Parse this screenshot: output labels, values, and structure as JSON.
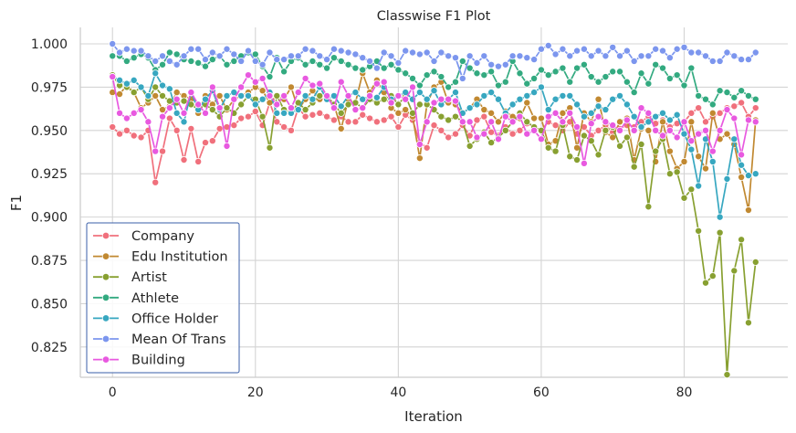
{
  "chart_data": {
    "type": "line",
    "title": "Classwise F1 Plot",
    "xlabel": "Iteration",
    "ylabel": "F1",
    "xlim": [
      -4.5,
      94.5
    ],
    "ylim": [
      0.8075,
      1.0095
    ],
    "xticks": [
      0,
      20,
      40,
      60,
      80
    ],
    "xtick_labels": [
      "0",
      "20",
      "40",
      "60",
      "80"
    ],
    "yticks": [
      0.825,
      0.85,
      0.875,
      0.9,
      0.925,
      0.95,
      0.975,
      1.0
    ],
    "ytick_labels": [
      "0.825",
      "0.850",
      "0.875",
      "0.900",
      "0.925",
      "0.950",
      "0.975",
      "1.000"
    ],
    "grid": true,
    "legend_position": "lower-left",
    "x": [
      0,
      1,
      2,
      3,
      4,
      5,
      6,
      7,
      8,
      9,
      10,
      11,
      12,
      13,
      14,
      15,
      16,
      17,
      18,
      19,
      20,
      21,
      22,
      23,
      24,
      25,
      26,
      27,
      28,
      29,
      30,
      31,
      32,
      33,
      34,
      35,
      36,
      37,
      38,
      39,
      40,
      41,
      42,
      43,
      44,
      45,
      46,
      47,
      48,
      49,
      50,
      51,
      52,
      53,
      54,
      55,
      56,
      57,
      58,
      59,
      60,
      61,
      62,
      63,
      64,
      65,
      66,
      67,
      68,
      69,
      70,
      71,
      72,
      73,
      74,
      75,
      76,
      77,
      78,
      79,
      80,
      81,
      82,
      83,
      84,
      85,
      86,
      87,
      88,
      89,
      90
    ],
    "series": [
      {
        "name": "Company",
        "color": "#f0707c",
        "values": [
          0.952,
          0.948,
          0.95,
          0.947,
          0.946,
          0.95,
          0.92,
          0.938,
          0.957,
          0.95,
          0.933,
          0.951,
          0.932,
          0.943,
          0.944,
          0.951,
          0.952,
          0.953,
          0.957,
          0.958,
          0.961,
          0.953,
          0.966,
          0.955,
          0.952,
          0.95,
          0.963,
          0.958,
          0.959,
          0.96,
          0.958,
          0.956,
          0.958,
          0.955,
          0.955,
          0.959,
          0.957,
          0.955,
          0.956,
          0.958,
          0.952,
          0.959,
          0.956,
          0.943,
          0.94,
          0.953,
          0.95,
          0.946,
          0.948,
          0.953,
          0.947,
          0.956,
          0.958,
          0.949,
          0.947,
          0.952,
          0.948,
          0.95,
          0.954,
          0.952,
          0.95,
          0.955,
          0.953,
          0.95,
          0.955,
          0.948,
          0.952,
          0.947,
          0.95,
          0.953,
          0.949,
          0.951,
          0.953,
          0.952,
          0.955,
          0.958,
          0.954,
          0.956,
          0.952,
          0.954,
          0.955,
          0.96,
          0.963,
          0.955,
          0.958,
          0.96,
          0.963,
          0.964,
          0.966,
          0.958,
          0.963
        ]
      },
      {
        "name": "Edu Institution",
        "color": "#c18931",
        "values": [
          0.972,
          0.971,
          0.976,
          0.972,
          0.963,
          0.966,
          0.97,
          0.962,
          0.964,
          0.972,
          0.97,
          0.968,
          0.96,
          0.97,
          0.965,
          0.97,
          0.962,
          0.968,
          0.97,
          0.972,
          0.975,
          0.973,
          0.966,
          0.97,
          0.968,
          0.975,
          0.962,
          0.968,
          0.973,
          0.968,
          0.969,
          0.965,
          0.951,
          0.968,
          0.966,
          0.983,
          0.972,
          0.979,
          0.972,
          0.963,
          0.96,
          0.962,
          0.958,
          0.934,
          0.965,
          0.975,
          0.978,
          0.966,
          0.965,
          0.96,
          0.963,
          0.968,
          0.962,
          0.96,
          0.955,
          0.961,
          0.958,
          0.957,
          0.966,
          0.957,
          0.957,
          0.942,
          0.944,
          0.96,
          0.963,
          0.94,
          0.96,
          0.955,
          0.968,
          0.949,
          0.946,
          0.955,
          0.957,
          0.933,
          0.951,
          0.95,
          0.932,
          0.955,
          0.938,
          0.928,
          0.932,
          0.955,
          0.935,
          0.928,
          0.96,
          0.945,
          0.948,
          0.942,
          0.923,
          0.904,
          0.956
        ]
      },
      {
        "name": "Artist",
        "color": "#88a031",
        "values": [
          0.982,
          0.976,
          0.975,
          0.972,
          0.975,
          0.968,
          0.975,
          0.97,
          0.967,
          0.966,
          0.967,
          0.965,
          0.962,
          0.965,
          0.962,
          0.958,
          0.963,
          0.96,
          0.965,
          0.97,
          0.968,
          0.958,
          0.94,
          0.97,
          0.962,
          0.96,
          0.966,
          0.962,
          0.966,
          0.97,
          0.97,
          0.965,
          0.96,
          0.965,
          0.966,
          0.963,
          0.968,
          0.966,
          0.968,
          0.97,
          0.965,
          0.97,
          0.96,
          0.965,
          0.965,
          0.962,
          0.958,
          0.956,
          0.958,
          0.955,
          0.941,
          0.945,
          0.949,
          0.943,
          0.946,
          0.95,
          0.955,
          0.96,
          0.955,
          0.952,
          0.95,
          0.94,
          0.938,
          0.953,
          0.935,
          0.933,
          0.947,
          0.944,
          0.936,
          0.95,
          0.952,
          0.941,
          0.946,
          0.929,
          0.942,
          0.906,
          0.938,
          0.945,
          0.925,
          0.926,
          0.911,
          0.916,
          0.892,
          0.862,
          0.866,
          0.891,
          0.809,
          0.869,
          0.887,
          0.839,
          0.874
        ]
      },
      {
        "name": "Athlete",
        "color": "#33aa80",
        "values": [
          0.993,
          0.993,
          0.99,
          0.992,
          0.994,
          0.992,
          0.985,
          0.988,
          0.995,
          0.994,
          0.991,
          0.99,
          0.989,
          0.987,
          0.991,
          0.993,
          0.988,
          0.99,
          0.993,
          0.995,
          0.994,
          0.987,
          0.981,
          0.992,
          0.984,
          0.99,
          0.992,
          0.988,
          0.99,
          0.988,
          0.986,
          0.992,
          0.99,
          0.988,
          0.986,
          0.985,
          0.987,
          0.99,
          0.986,
          0.988,
          0.985,
          0.983,
          0.98,
          0.976,
          0.982,
          0.984,
          0.981,
          0.975,
          0.978,
          0.99,
          0.986,
          0.983,
          0.982,
          0.984,
          0.976,
          0.978,
          0.99,
          0.983,
          0.977,
          0.98,
          0.985,
          0.982,
          0.984,
          0.986,
          0.978,
          0.986,
          0.988,
          0.981,
          0.978,
          0.981,
          0.984,
          0.984,
          0.978,
          0.972,
          0.983,
          0.977,
          0.988,
          0.986,
          0.98,
          0.982,
          0.976,
          0.986,
          0.97,
          0.968,
          0.965,
          0.973,
          0.972,
          0.969,
          0.973,
          0.97,
          0.968
        ]
      },
      {
        "name": "Office Holder",
        "color": "#37a7c0",
        "values": [
          0.981,
          0.979,
          0.977,
          0.979,
          0.975,
          0.97,
          0.983,
          0.976,
          0.974,
          0.96,
          0.955,
          0.972,
          0.962,
          0.968,
          0.973,
          0.962,
          0.97,
          0.972,
          0.97,
          0.97,
          0.965,
          0.968,
          0.972,
          0.96,
          0.96,
          0.96,
          0.962,
          0.97,
          0.968,
          0.975,
          0.968,
          0.97,
          0.964,
          0.97,
          0.972,
          0.968,
          0.97,
          0.969,
          0.975,
          0.968,
          0.97,
          0.972,
          0.968,
          0.972,
          0.968,
          0.973,
          0.965,
          0.968,
          0.972,
          0.96,
          0.963,
          0.965,
          0.97,
          0.972,
          0.968,
          0.96,
          0.965,
          0.968,
          0.97,
          0.972,
          0.975,
          0.962,
          0.968,
          0.97,
          0.97,
          0.965,
          0.958,
          0.96,
          0.964,
          0.962,
          0.968,
          0.97,
          0.965,
          0.958,
          0.952,
          0.955,
          0.958,
          0.96,
          0.956,
          0.959,
          0.948,
          0.939,
          0.918,
          0.945,
          0.932,
          0.9,
          0.922,
          0.945,
          0.93,
          0.924,
          0.925
        ]
      },
      {
        "name": "Mean Of Trans",
        "color": "#7c96ee",
        "values": [
          1.0,
          0.995,
          0.997,
          0.996,
          0.996,
          0.993,
          0.99,
          0.993,
          0.99,
          0.988,
          0.993,
          0.997,
          0.997,
          0.991,
          0.995,
          0.993,
          0.997,
          0.994,
          0.99,
          0.996,
          0.99,
          0.988,
          0.995,
          0.991,
          0.991,
          0.993,
          0.993,
          0.997,
          0.996,
          0.993,
          0.991,
          0.997,
          0.996,
          0.995,
          0.994,
          0.992,
          0.99,
          0.986,
          0.995,
          0.993,
          0.989,
          0.996,
          0.995,
          0.994,
          0.995,
          0.99,
          0.995,
          0.993,
          0.992,
          0.98,
          0.993,
          0.989,
          0.993,
          0.988,
          0.987,
          0.988,
          0.993,
          0.993,
          0.992,
          0.991,
          0.997,
          0.999,
          0.994,
          0.997,
          0.993,
          0.996,
          0.997,
          0.993,
          0.996,
          0.993,
          0.998,
          0.993,
          0.996,
          0.99,
          0.993,
          0.993,
          0.997,
          0.996,
          0.992,
          0.997,
          0.998,
          0.995,
          0.995,
          0.993,
          0.99,
          0.99,
          0.995,
          0.993,
          0.991,
          0.991,
          0.995
        ]
      },
      {
        "name": "Building",
        "color": "#e859e0",
        "values": [
          0.981,
          0.96,
          0.957,
          0.96,
          0.962,
          0.955,
          0.938,
          0.958,
          0.963,
          0.968,
          0.96,
          0.972,
          0.965,
          0.96,
          0.975,
          0.963,
          0.941,
          0.968,
          0.975,
          0.982,
          0.978,
          0.98,
          0.97,
          0.965,
          0.97,
          0.963,
          0.972,
          0.98,
          0.976,
          0.977,
          0.97,
          0.963,
          0.978,
          0.97,
          0.962,
          0.963,
          0.97,
          0.977,
          0.978,
          0.966,
          0.97,
          0.968,
          0.975,
          0.942,
          0.955,
          0.966,
          0.968,
          0.968,
          0.967,
          0.955,
          0.955,
          0.946,
          0.948,
          0.955,
          0.945,
          0.958,
          0.955,
          0.958,
          0.948,
          0.95,
          0.945,
          0.958,
          0.96,
          0.955,
          0.96,
          0.952,
          0.931,
          0.954,
          0.958,
          0.955,
          0.953,
          0.95,
          0.956,
          0.95,
          0.963,
          0.96,
          0.95,
          0.947,
          0.95,
          0.946,
          0.955,
          0.944,
          0.948,
          0.95,
          0.938,
          0.95,
          0.962,
          0.957,
          0.936,
          0.956,
          0.955
        ]
      }
    ]
  }
}
